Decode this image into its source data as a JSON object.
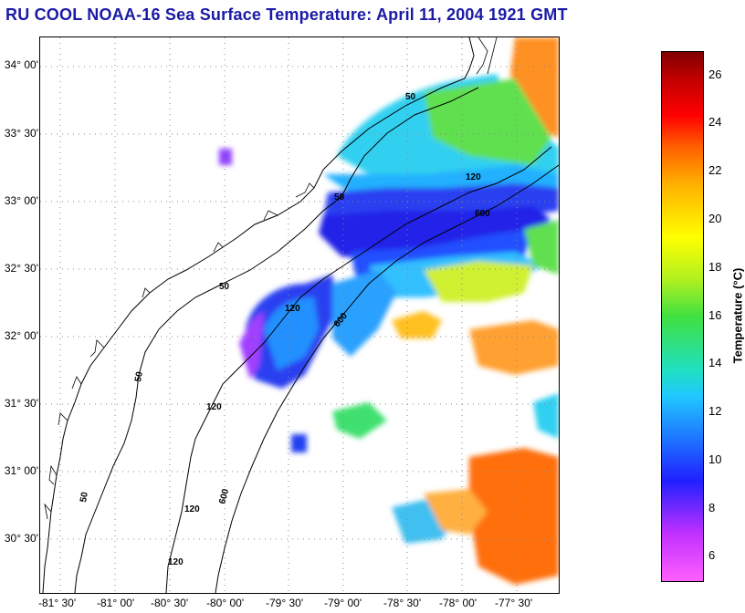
{
  "title": "RU COOL  NOAA-16  Sea Surface Temperature:  April 11, 2004 1921 GMT",
  "latitude_labels": [
    "34° 00'",
    "33° 30'",
    "33° 00'",
    "32° 30'",
    "32° 00'",
    "31° 30'",
    "31° 00'",
    "30° 30'"
  ],
  "longitude_labels": [
    "-81° 30'",
    "-81° 00'",
    "-80° 30'",
    "-80° 00'",
    "-79° 30'",
    "-79° 00'",
    "-78° 30'",
    "-78° 00'",
    "-77° 30'"
  ],
  "colorbar": {
    "title": "Temperature (°C)",
    "ticks": [
      "26",
      "24",
      "22",
      "20",
      "18",
      "16",
      "14",
      "12",
      "10",
      "8",
      "6"
    ],
    "range": [
      5,
      27
    ]
  },
  "contour_labels": [
    "50",
    "50",
    "50",
    "50",
    "50",
    "120",
    "120",
    "120",
    "120",
    "120",
    "600",
    "600",
    "600"
  ],
  "colors": {
    "title": "#1a1aa6",
    "cold": "#2020ff",
    "cool": "#20c8ff",
    "mid": "#40e040",
    "warm": "#ffb000",
    "hot": "#ff6000"
  }
}
